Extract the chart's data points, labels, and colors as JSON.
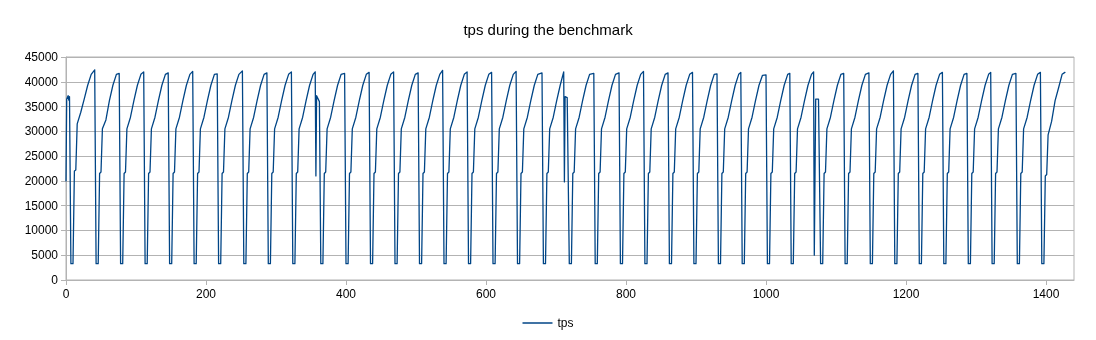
{
  "chart_data": {
    "type": "line",
    "title": "tps during the benchmark",
    "xlim": [
      0,
      1440
    ],
    "xticks": [
      0,
      200,
      400,
      600,
      800,
      1000,
      1200,
      1400
    ],
    "ylim": [
      0,
      45000
    ],
    "yticks": [
      0,
      5000,
      10000,
      15000,
      20000,
      25000,
      30000,
      35000,
      40000,
      45000
    ],
    "grid": "y",
    "legend": "bottom",
    "marker": "none",
    "line_style": "solid",
    "series": [
      {
        "name": "tps",
        "color": "#004586",
        "x": [
          0,
          1,
          3,
          4,
          5,
          7,
          10,
          12,
          14,
          16,
          21,
          26,
          31,
          36,
          41,
          43,
          46,
          48,
          50,
          52,
          57,
          62,
          67,
          72,
          76,
          78,
          81,
          83,
          85,
          87,
          92,
          97,
          102,
          107,
          111,
          113,
          116,
          118,
          120,
          122,
          127,
          132,
          137,
          142,
          146,
          148,
          151,
          153,
          155,
          157,
          162,
          167,
          172,
          177,
          181,
          183,
          186,
          188,
          190,
          192,
          197,
          202,
          207,
          212,
          216,
          218,
          221,
          223,
          225,
          227,
          232,
          237,
          242,
          247,
          252,
          254,
          257,
          259,
          261,
          263,
          268,
          273,
          278,
          283,
          287,
          289,
          292,
          294,
          296,
          298,
          303,
          308,
          313,
          318,
          322,
          324,
          327,
          329,
          331,
          333,
          338,
          343,
          348,
          353,
          356,
          357,
          358,
          362,
          364,
          367,
          369,
          371,
          373,
          378,
          383,
          388,
          393,
          398,
          400,
          403,
          405,
          407,
          409,
          414,
          419,
          424,
          429,
          433,
          435,
          438,
          440,
          442,
          444,
          449,
          454,
          459,
          464,
          468,
          470,
          473,
          475,
          477,
          479,
          484,
          489,
          494,
          499,
          503,
          505,
          508,
          510,
          512,
          514,
          519,
          524,
          529,
          534,
          538,
          540,
          543,
          545,
          547,
          549,
          554,
          559,
          564,
          569,
          573,
          575,
          578,
          580,
          582,
          584,
          589,
          594,
          599,
          604,
          608,
          610,
          613,
          615,
          617,
          619,
          624,
          629,
          634,
          639,
          643,
          645,
          648,
          650,
          652,
          654,
          659,
          664,
          669,
          674,
          680,
          682,
          685,
          687,
          689,
          691,
          696,
          701,
          706,
          711,
          712,
          713,
          716,
          719,
          722,
          724,
          726,
          728,
          733,
          738,
          743,
          748,
          754,
          756,
          759,
          761,
          763,
          765,
          770,
          775,
          780,
          785,
          790,
          792,
          795,
          797,
          799,
          801,
          806,
          811,
          816,
          821,
          825,
          827,
          830,
          832,
          834,
          836,
          841,
          846,
          851,
          856,
          860,
          862,
          865,
          867,
          869,
          871,
          876,
          881,
          886,
          891,
          895,
          897,
          900,
          902,
          904,
          906,
          911,
          916,
          921,
          926,
          930,
          932,
          935,
          937,
          939,
          941,
          946,
          951,
          956,
          961,
          964,
          966,
          969,
          971,
          973,
          975,
          980,
          985,
          990,
          995,
          1000,
          1002,
          1005,
          1007,
          1009,
          1011,
          1016,
          1021,
          1026,
          1031,
          1034,
          1036,
          1039,
          1041,
          1043,
          1045,
          1050,
          1055,
          1060,
          1065,
          1068,
          1069,
          1071,
          1075,
          1078,
          1081,
          1083,
          1085,
          1087,
          1092,
          1097,
          1102,
          1107,
          1111,
          1113,
          1116,
          1118,
          1120,
          1122,
          1127,
          1132,
          1137,
          1142,
          1147,
          1149,
          1152,
          1154,
          1156,
          1158,
          1163,
          1168,
          1173,
          1178,
          1182,
          1184,
          1187,
          1189,
          1191,
          1193,
          1198,
          1203,
          1208,
          1213,
          1217,
          1219,
          1222,
          1224,
          1226,
          1228,
          1233,
          1238,
          1243,
          1248,
          1252,
          1254,
          1257,
          1259,
          1261,
          1263,
          1268,
          1273,
          1278,
          1283,
          1287,
          1289,
          1292,
          1294,
          1296,
          1298,
          1303,
          1308,
          1313,
          1318,
          1321,
          1323,
          1326,
          1328,
          1330,
          1332,
          1337,
          1342,
          1347,
          1352,
          1357,
          1359,
          1362,
          1364,
          1366,
          1368,
          1373,
          1378,
          1383,
          1388,
          1392,
          1394,
          1397,
          1399,
          1401,
          1403,
          1408,
          1413,
          1418,
          1423,
          1427
        ],
        "values": [
          20000,
          36500,
          37200,
          36300,
          37000,
          3300,
          3300,
          22000,
          22200,
          31500,
          33800,
          36500,
          39300,
          41500,
          42400,
          3300,
          3300,
          21500,
          21800,
          30500,
          32300,
          36200,
          39300,
          41500,
          41700,
          3300,
          3300,
          21500,
          21800,
          30500,
          32800,
          36200,
          39300,
          41500,
          42000,
          3300,
          3300,
          21500,
          21800,
          30500,
          32800,
          36200,
          39300,
          41500,
          41800,
          3300,
          3300,
          21500,
          21800,
          30500,
          32800,
          36200,
          39300,
          41500,
          42100,
          3300,
          3300,
          21500,
          21800,
          30500,
          32800,
          36200,
          39300,
          41500,
          41600,
          3300,
          3300,
          21500,
          21800,
          30500,
          32800,
          36200,
          39300,
          41500,
          42200,
          3300,
          3300,
          21500,
          21800,
          30500,
          32800,
          36200,
          39300,
          41500,
          41800,
          3300,
          3300,
          21500,
          21800,
          30500,
          32800,
          36200,
          39300,
          41500,
          42000,
          3300,
          3300,
          21500,
          21800,
          30500,
          32800,
          36200,
          39300,
          41500,
          42000,
          21000,
          37200,
          36000,
          3300,
          3300,
          21500,
          21800,
          30500,
          32800,
          36200,
          39300,
          41500,
          41700,
          3300,
          3300,
          21500,
          21800,
          30500,
          32800,
          36200,
          39300,
          41500,
          41900,
          3300,
          3300,
          21500,
          21800,
          30500,
          32800,
          36200,
          39300,
          41500,
          42000,
          3300,
          3300,
          21500,
          21800,
          30500,
          32800,
          36200,
          39300,
          41500,
          41800,
          3300,
          3300,
          21500,
          21800,
          30500,
          32800,
          36200,
          39300,
          41500,
          42300,
          3300,
          3300,
          21500,
          21800,
          30500,
          32800,
          36200,
          39300,
          41500,
          42000,
          3300,
          3300,
          21500,
          21800,
          30500,
          32800,
          36200,
          39300,
          41500,
          41900,
          3300,
          3300,
          21500,
          21800,
          30500,
          32800,
          36200,
          39300,
          41500,
          42100,
          3300,
          3300,
          21500,
          21800,
          30500,
          32800,
          36200,
          39300,
          41500,
          41800,
          3300,
          3300,
          21500,
          21800,
          30500,
          32800,
          36200,
          39300,
          42000,
          19800,
          37000,
          36800,
          3300,
          3300,
          21500,
          21800,
          30500,
          32800,
          36200,
          39300,
          41500,
          41700,
          3300,
          3300,
          21500,
          21800,
          30500,
          32800,
          36200,
          39300,
          41500,
          41800,
          3300,
          3300,
          21500,
          21800,
          30500,
          32800,
          36200,
          39300,
          41500,
          42100,
          3300,
          3300,
          21500,
          21800,
          30500,
          32800,
          36200,
          39300,
          41500,
          41800,
          3300,
          3300,
          21500,
          21800,
          30500,
          32800,
          36200,
          39300,
          41500,
          41900,
          3300,
          3300,
          21500,
          21800,
          30500,
          32800,
          36200,
          39300,
          41500,
          41600,
          3300,
          3300,
          21500,
          21800,
          30500,
          32800,
          36200,
          39300,
          41500,
          41900,
          3300,
          3300,
          21500,
          21800,
          30500,
          32800,
          36200,
          39300,
          41300,
          41400,
          3300,
          3300,
          21500,
          21800,
          30500,
          32800,
          36200,
          39300,
          41500,
          41700,
          3300,
          3300,
          21500,
          21800,
          30500,
          32800,
          36200,
          39300,
          41500,
          42000,
          5000,
          36500,
          36500,
          3300,
          3300,
          21500,
          21800,
          30500,
          32800,
          36200,
          39300,
          41500,
          41700,
          3300,
          3300,
          21500,
          21800,
          30500,
          32800,
          36200,
          39300,
          41500,
          41800,
          3300,
          3300,
          21500,
          21800,
          30500,
          32800,
          36200,
          39300,
          41500,
          42200,
          3300,
          3300,
          21500,
          21800,
          30500,
          32800,
          36200,
          39300,
          41500,
          41700,
          3300,
          3300,
          21500,
          21800,
          30500,
          32800,
          36200,
          39300,
          41500,
          41900,
          3300,
          3300,
          21500,
          21800,
          30500,
          32800,
          36200,
          39300,
          41500,
          41700,
          3300,
          3300,
          21500,
          21800,
          30500,
          32800,
          36200,
          39300,
          41500,
          41900,
          3300,
          3300,
          21500,
          21800,
          30500,
          32800,
          36200,
          39300,
          41500,
          41700,
          3300,
          3300,
          21500,
          21800,
          30500,
          32800,
          36200,
          39300,
          41500,
          41900,
          3300,
          3300,
          21000,
          21300,
          29300,
          32000,
          36200,
          38800,
          41500,
          41900
        ]
      }
    ]
  }
}
